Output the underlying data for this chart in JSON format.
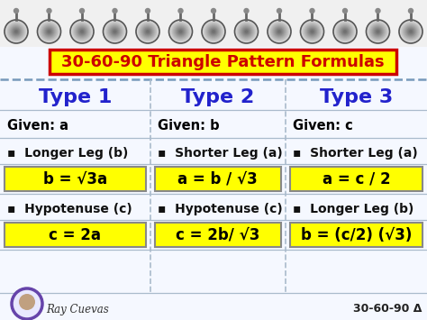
{
  "title": "30-60-90 Triangle Pattern Formulas",
  "title_color": "#cc0000",
  "title_bg": "#ffff00",
  "title_fontsize": 13,
  "col_headers": [
    "Type 1",
    "Type 2",
    "Type 3"
  ],
  "col_header_color": "#2222cc",
  "col_header_fontsize": 16,
  "given_labels": [
    "Given: a",
    "Given: b",
    "Given: c"
  ],
  "bullet_labels_1": [
    "Longer Leg (b)",
    "Shorter Leg (a)",
    "Shorter Leg (a)"
  ],
  "formula_1": [
    "b = √3a",
    "a = b / √3",
    "a = c / 2"
  ],
  "bullet_labels_2": [
    "Hypotenuse (c)",
    "Hypotenuse (c)",
    "Longer Leg (b)"
  ],
  "formula_2": [
    "c = 2a",
    "c = 2b/ √3",
    "b = (c/2) (√3)"
  ],
  "formula_color": "#000000",
  "formula_bg": "#ffff00",
  "formula_fontsize": 12,
  "main_bg": "#ffffff",
  "line_color": "#aabbcc",
  "dashed_line_color": "#7799bb",
  "divider_color": "#aabbcc",
  "watermark_name": "Ray Cuevas",
  "bottom_right": "30-60-90 Δ",
  "col_dividers": [
    0.352,
    0.668
  ],
  "n_rings": 13,
  "ring_color": "#999999",
  "top_bg": "#e8e8e8",
  "paper_bg": "#f5f8ff"
}
